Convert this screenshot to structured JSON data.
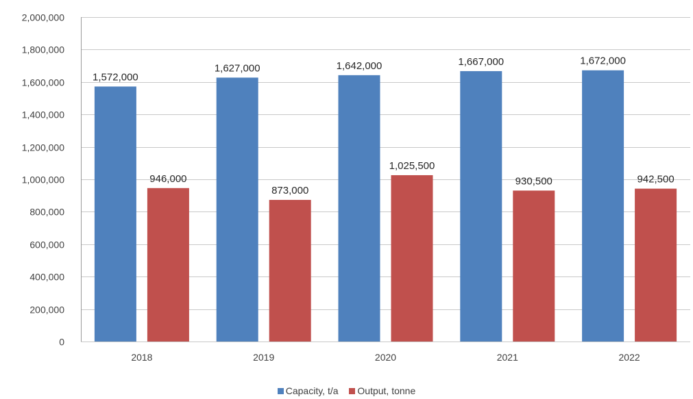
{
  "chart_data": {
    "type": "bar",
    "categories": [
      "2018",
      "2019",
      "2020",
      "2021",
      "2022"
    ],
    "series": [
      {
        "name": "Capacity, t/a",
        "values": [
          1572000,
          1627000,
          1642000,
          1667000,
          1672000
        ],
        "color": "#4f81bd"
      },
      {
        "name": "Output, tonne",
        "values": [
          946000,
          873000,
          1025500,
          930500,
          942500
        ],
        "color": "#c0504d"
      }
    ],
    "data_labels": [
      [
        "1,572,000",
        "1,627,000",
        "1,642,000",
        "1,667,000",
        "1,672,000"
      ],
      [
        "946,000",
        "873,000",
        "1,025,500",
        "930,500",
        "942,500"
      ]
    ],
    "y_ticks": [
      "0",
      "200,000",
      "400,000",
      "600,000",
      "800,000",
      "1,000,000",
      "1,200,000",
      "1,400,000",
      "1,600,000",
      "1,800,000",
      "2,000,000"
    ],
    "ylim": [
      0,
      2000000
    ],
    "grid": true,
    "legend_position": "bottom",
    "title": "",
    "xlabel": "",
    "ylabel": ""
  }
}
